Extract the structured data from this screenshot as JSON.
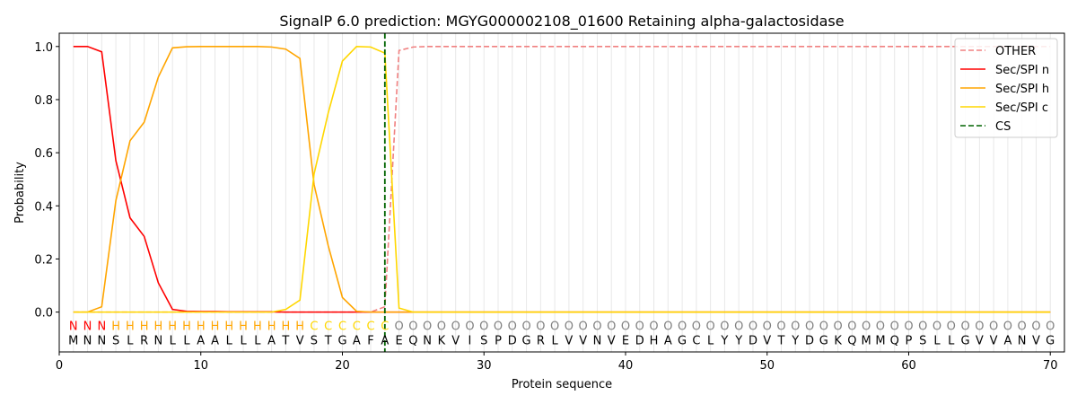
{
  "chart_data": {
    "type": "line",
    "title": "SignalP 6.0 prediction: MGYG000002108_01600 Retaining alpha-galactosidase",
    "xlabel": "Protein sequence",
    "ylabel": "Probability",
    "xlim": [
      0,
      71
    ],
    "ylim": [
      -0.15,
      1.05
    ],
    "x_ticks": [
      0,
      10,
      20,
      30,
      40,
      50,
      60,
      70
    ],
    "y_ticks": [
      0.0,
      0.2,
      0.4,
      0.6,
      0.8,
      1.0
    ],
    "x_tick_labels": [
      "0",
      "10",
      "20",
      "30",
      "40",
      "50",
      "60",
      "70"
    ],
    "y_tick_labels": [
      "0.0",
      "0.2",
      "0.4",
      "0.6",
      "0.8",
      "1.0"
    ],
    "legend_position": "top-right",
    "sequence": [
      "M",
      "N",
      "N",
      "S",
      "L",
      "R",
      "N",
      "L",
      "L",
      "A",
      "A",
      "L",
      "L",
      "L",
      "A",
      "T",
      "V",
      "S",
      "T",
      "G",
      "A",
      "F",
      "A",
      "E",
      "Q",
      "N",
      "K",
      "V",
      "I",
      "S",
      "P",
      "D",
      "G",
      "R",
      "L",
      "V",
      "V",
      "N",
      "V",
      "E",
      "D",
      "H",
      "A",
      "G",
      "C",
      "L",
      "Y",
      "Y",
      "D",
      "V",
      "T",
      "Y",
      "D",
      "G",
      "K",
      "Q",
      "M",
      "M",
      "Q",
      "P",
      "S",
      "L",
      "L",
      "G",
      "V",
      "V",
      "A",
      "N",
      "V",
      "G"
    ],
    "region_labels": [
      "N",
      "N",
      "N",
      "H",
      "H",
      "H",
      "H",
      "H",
      "H",
      "H",
      "H",
      "H",
      "H",
      "H",
      "H",
      "H",
      "H",
      "C",
      "C",
      "C",
      "C",
      "C",
      "C",
      "O",
      "O",
      "O",
      "O",
      "O",
      "O",
      "O",
      "O",
      "O",
      "O",
      "O",
      "O",
      "O",
      "O",
      "O",
      "O",
      "O",
      "O",
      "O",
      "O",
      "O",
      "O",
      "O",
      "O",
      "O",
      "O",
      "O",
      "O",
      "O",
      "O",
      "O",
      "O",
      "O",
      "O",
      "O",
      "O",
      "O",
      "O",
      "O",
      "O",
      "O",
      "O",
      "O",
      "O",
      "O",
      "O",
      "O"
    ],
    "region_colors": {
      "N": "#ff0000",
      "H": "#ffa500",
      "C": "#ffd700",
      "O": "#808080"
    },
    "cleavage_site": 23,
    "series": [
      {
        "name": "OTHER",
        "color": "#f08080",
        "dash": "dashed",
        "values": [
          0,
          0,
          0,
          0,
          0,
          0,
          0,
          0,
          0,
          0,
          0,
          0,
          0,
          0,
          0,
          0,
          0,
          0,
          0,
          0,
          0,
          0,
          0.02,
          0.985,
          0.998,
          1,
          1,
          1,
          1,
          1,
          1,
          1,
          1,
          1,
          1,
          1,
          1,
          1,
          1,
          1,
          1,
          1,
          1,
          1,
          1,
          1,
          1,
          1,
          1,
          1,
          1,
          1,
          1,
          1,
          1,
          1,
          1,
          1,
          1,
          1,
          1,
          1,
          1,
          1,
          1,
          1,
          1,
          1,
          1,
          1
        ]
      },
      {
        "name": "Sec/SPI n",
        "color": "#ff0000",
        "dash": "solid",
        "values": [
          1,
          1,
          0.98,
          0.57,
          0.355,
          0.285,
          0.11,
          0.01,
          0.003,
          0.002,
          0.002,
          0.001,
          0.001,
          0.001,
          0.001,
          0,
          0,
          0,
          0,
          0,
          0,
          0,
          0,
          0,
          0,
          0,
          0,
          0,
          0,
          0,
          0,
          0,
          0,
          0,
          0,
          0,
          0,
          0,
          0,
          0,
          0,
          0,
          0,
          0,
          0,
          0,
          0,
          0,
          0,
          0,
          0,
          0,
          0,
          0,
          0,
          0,
          0,
          0,
          0,
          0,
          0,
          0,
          0,
          0,
          0,
          0,
          0,
          0,
          0,
          0
        ]
      },
      {
        "name": "Sec/SPI h",
        "color": "#ffa500",
        "dash": "solid",
        "values": [
          0,
          0,
          0.02,
          0.42,
          0.645,
          0.715,
          0.885,
          0.995,
          0.999,
          1,
          1,
          1,
          1,
          1,
          0.998,
          0.99,
          0.955,
          0.48,
          0.25,
          0.055,
          0.003,
          0,
          0,
          0,
          0,
          0,
          0,
          0,
          0,
          0,
          0,
          0,
          0,
          0,
          0,
          0,
          0,
          0,
          0,
          0,
          0,
          0,
          0,
          0,
          0,
          0,
          0,
          0,
          0,
          0,
          0,
          0,
          0,
          0,
          0,
          0,
          0,
          0,
          0,
          0,
          0,
          0,
          0,
          0,
          0,
          0,
          0,
          0,
          0,
          0
        ]
      },
      {
        "name": "Sec/SPI c",
        "color": "#ffd700",
        "dash": "solid",
        "values": [
          0,
          0,
          0,
          0,
          0,
          0,
          0,
          0,
          0,
          0,
          0,
          0,
          0,
          0,
          0,
          0.01,
          0.045,
          0.52,
          0.75,
          0.945,
          1,
          0.998,
          0.975,
          0.015,
          0,
          0,
          0,
          0,
          0,
          0,
          0,
          0,
          0,
          0,
          0,
          0,
          0,
          0,
          0,
          0,
          0,
          0,
          0,
          0,
          0,
          0,
          0,
          0,
          0,
          0,
          0,
          0,
          0,
          0,
          0,
          0,
          0,
          0,
          0,
          0,
          0,
          0,
          0,
          0,
          0,
          0,
          0,
          0,
          0,
          0
        ]
      },
      {
        "name": "CS",
        "color": "#006400",
        "dash": "dashed",
        "values": []
      }
    ]
  }
}
